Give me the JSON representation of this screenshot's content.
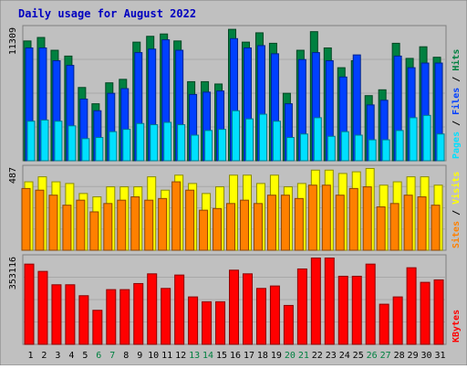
{
  "title": "Daily usage for August 2022",
  "colors": {
    "background": "#c0c0c0",
    "border": "#808080",
    "title": "#0000c0",
    "hits": "#008040",
    "files": "#0040ff",
    "pages": "#00e0ff",
    "visits": "#ffff00",
    "sites": "#ff8000",
    "kbytes": "#ff0000",
    "weekend": "#008040",
    "weekday": "#000000"
  },
  "chart_data": [
    {
      "type": "bar",
      "name": "hits-files-pages",
      "categories": [
        "1",
        "2",
        "3",
        "4",
        "5",
        "6",
        "7",
        "8",
        "9",
        "10",
        "11",
        "12",
        "13",
        "14",
        "15",
        "16",
        "17",
        "18",
        "19",
        "20",
        "21",
        "22",
        "23",
        "24",
        "25",
        "26",
        "27",
        "28",
        "29",
        "30",
        "31"
      ],
      "weekend": [
        false,
        false,
        false,
        false,
        false,
        true,
        true,
        false,
        false,
        false,
        false,
        false,
        true,
        true,
        false,
        false,
        false,
        false,
        false,
        true,
        true,
        false,
        false,
        false,
        false,
        true,
        true,
        false,
        false,
        false,
        false
      ],
      "ymax_label": "11309",
      "ylim": [
        0,
        11309
      ],
      "legend": [
        {
          "label": "Hits",
          "color": "#008040"
        },
        {
          "label": "Files",
          "color": "#0040ff"
        },
        {
          "label": "Pages",
          "color": "#00e0ff"
        }
      ],
      "series": [
        {
          "name": "Hits",
          "values": [
            10300,
            10600,
            9500,
            9000,
            6300,
            4900,
            6700,
            7000,
            10200,
            10700,
            10900,
            10300,
            6800,
            6800,
            6600,
            11300,
            10200,
            11000,
            10100,
            5800,
            9500,
            11100,
            9700,
            8000,
            8600,
            5600,
            6100,
            10100,
            8800,
            9800,
            8900
          ]
        },
        {
          "name": "Files",
          "values": [
            9700,
            9700,
            8600,
            8200,
            5300,
            4300,
            5800,
            6200,
            9300,
            9600,
            10400,
            9500,
            5700,
            5900,
            6000,
            10500,
            9700,
            9900,
            9200,
            4900,
            8700,
            9300,
            8600,
            7200,
            9100,
            4800,
            5200,
            9000,
            8000,
            8400,
            8400
          ]
        },
        {
          "name": "Pages",
          "values": [
            3400,
            3500,
            3400,
            3000,
            1900,
            2000,
            2500,
            2700,
            3200,
            3100,
            3300,
            3100,
            2200,
            2600,
            2700,
            4300,
            3600,
            4000,
            3400,
            2000,
            2300,
            3700,
            2100,
            2500,
            2200,
            1800,
            1800,
            2600,
            3700,
            3900,
            2300
          ]
        }
      ]
    },
    {
      "type": "bar",
      "name": "visits-sites",
      "categories": [
        "1",
        "2",
        "3",
        "4",
        "5",
        "6",
        "7",
        "8",
        "9",
        "10",
        "11",
        "12",
        "13",
        "14",
        "15",
        "16",
        "17",
        "18",
        "19",
        "20",
        "21",
        "22",
        "23",
        "24",
        "25",
        "26",
        "27",
        "28",
        "29",
        "30",
        "31"
      ],
      "ymax_label": "487",
      "ylim": [
        0,
        487
      ],
      "legend": [
        {
          "label": "Visits",
          "color": "#ffff00"
        },
        {
          "label": "Sites",
          "color": "#ff8000"
        }
      ],
      "series": [
        {
          "name": "Visits",
          "values": [
            410,
            440,
            410,
            400,
            340,
            320,
            380,
            380,
            380,
            440,
            360,
            450,
            400,
            340,
            380,
            450,
            450,
            400,
            450,
            380,
            400,
            480,
            480,
            460,
            470,
            490,
            390,
            410,
            440,
            440,
            390
          ]
        },
        {
          "name": "Sites",
          "values": [
            370,
            360,
            330,
            270,
            300,
            230,
            280,
            300,
            320,
            300,
            310,
            410,
            360,
            240,
            250,
            280,
            300,
            280,
            330,
            330,
            310,
            390,
            390,
            330,
            370,
            380,
            260,
            280,
            330,
            320,
            270
          ]
        }
      ]
    },
    {
      "type": "bar",
      "name": "kbytes",
      "categories": [
        "1",
        "2",
        "3",
        "4",
        "5",
        "6",
        "7",
        "8",
        "9",
        "10",
        "11",
        "12",
        "13",
        "14",
        "15",
        "16",
        "17",
        "18",
        "19",
        "20",
        "21",
        "22",
        "23",
        "24",
        "25",
        "26",
        "27",
        "28",
        "29",
        "30",
        "31"
      ],
      "ymax_label": "353116",
      "ylim": [
        0,
        353116
      ],
      "legend": [
        {
          "label": "KBytes",
          "color": "#ff0000"
        }
      ],
      "series": [
        {
          "name": "KBytes",
          "values": [
            330000,
            300000,
            245000,
            245000,
            200000,
            140000,
            225000,
            225000,
            250000,
            290000,
            230000,
            285000,
            195000,
            175000,
            175000,
            305000,
            290000,
            230000,
            240000,
            160000,
            310000,
            355000,
            355000,
            280000,
            280000,
            330000,
            165000,
            195000,
            315000,
            255000,
            265000
          ]
        }
      ]
    }
  ]
}
